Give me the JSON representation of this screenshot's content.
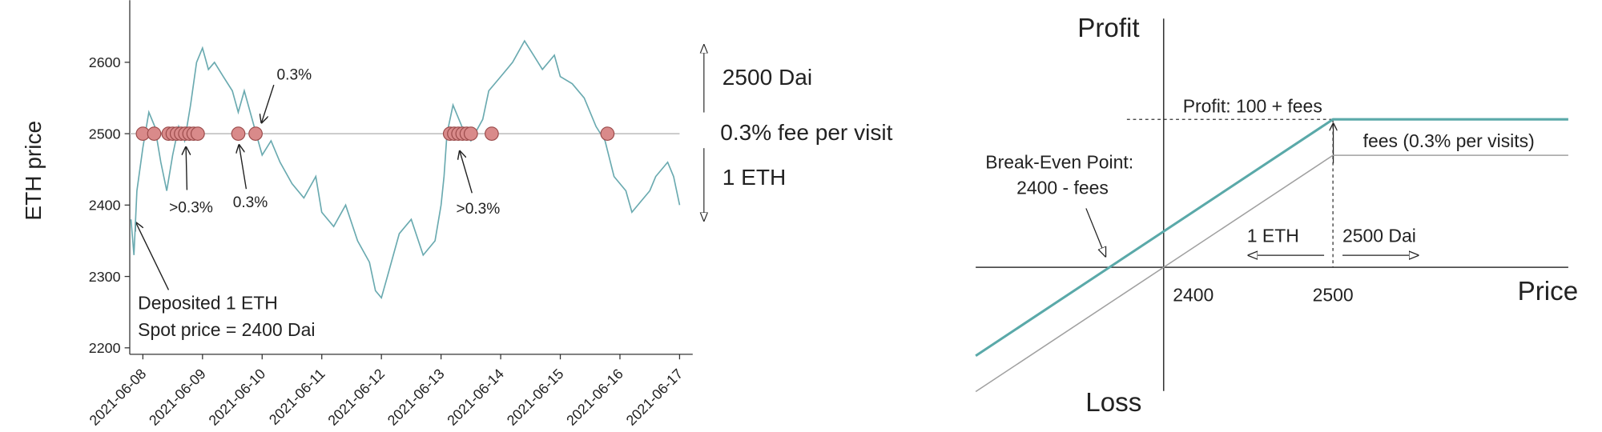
{
  "chart_data": [
    {
      "type": "line",
      "y_label": "ETH price",
      "xlim": [
        7.78,
        17.22
      ],
      "ylim": [
        2191,
        2687
      ],
      "xticks": [
        {
          "value": 8,
          "label": "2021-06-08"
        },
        {
          "value": 9,
          "label": "2021-06-09"
        },
        {
          "value": 10,
          "label": "2021-06-10"
        },
        {
          "value": 11,
          "label": "2021-06-11"
        },
        {
          "value": 12,
          "label": "2021-06-12"
        },
        {
          "value": 13,
          "label": "2021-06-13"
        },
        {
          "value": 14,
          "label": "2021-06-14"
        },
        {
          "value": 15,
          "label": "2021-06-15"
        },
        {
          "value": 16,
          "label": "2021-06-16"
        },
        {
          "value": 17,
          "label": "2021-06-17"
        }
      ],
      "yticks": [
        2200,
        2300,
        2400,
        2500,
        2600
      ],
      "reference_line": 2500,
      "series": [
        {
          "type": "line",
          "color": "#6aaab0",
          "x": [
            7.8,
            7.85,
            7.9,
            8.0,
            8.1,
            8.2,
            8.3,
            8.4,
            8.5,
            8.6,
            8.7,
            8.8,
            8.9,
            9.0,
            9.1,
            9.2,
            9.35,
            9.5,
            9.6,
            9.7,
            9.8,
            9.9,
            10.0,
            10.15,
            10.3,
            10.5,
            10.7,
            10.9,
            11.0,
            11.2,
            11.4,
            11.6,
            11.8,
            11.9,
            12.0,
            12.1,
            12.3,
            12.5,
            12.7,
            12.9,
            13.0,
            13.05,
            13.1,
            13.2,
            13.35,
            13.5,
            13.7,
            13.8,
            14.0,
            14.2,
            14.4,
            14.55,
            14.7,
            14.9,
            15.0,
            15.2,
            15.4,
            15.6,
            15.75,
            15.9,
            16.1,
            16.2,
            16.3,
            16.5,
            16.6,
            16.8,
            16.9,
            17.0
          ],
          "values": [
            2380,
            2330,
            2420,
            2480,
            2530,
            2510,
            2460,
            2420,
            2470,
            2510,
            2490,
            2540,
            2600,
            2620,
            2590,
            2600,
            2580,
            2560,
            2530,
            2560,
            2530,
            2500,
            2470,
            2490,
            2460,
            2430,
            2410,
            2440,
            2390,
            2370,
            2400,
            2350,
            2320,
            2280,
            2270,
            2300,
            2360,
            2380,
            2330,
            2350,
            2400,
            2440,
            2500,
            2540,
            2510,
            2490,
            2520,
            2560,
            2580,
            2600,
            2630,
            2610,
            2590,
            2610,
            2580,
            2570,
            2550,
            2510,
            2490,
            2440,
            2420,
            2390,
            2400,
            2420,
            2440,
            2460,
            2440,
            2400
          ]
        },
        {
          "type": "scatter",
          "color": "#d98a8a",
          "x": [
            8.0,
            8.19,
            8.43,
            8.5,
            8.57,
            8.64,
            8.71,
            8.78,
            8.85,
            8.92,
            9.6,
            9.89,
            13.15,
            13.22,
            13.29,
            13.36,
            13.43,
            13.5,
            13.85,
            15.79
          ],
          "values": [
            2500,
            2500,
            2500,
            2500,
            2500,
            2500,
            2500,
            2500,
            2500,
            2500,
            2500,
            2500,
            2500,
            2500,
            2500,
            2500,
            2500,
            2500,
            2500,
            2500
          ]
        }
      ],
      "annotations": [
        "0.3%",
        ">0.3%",
        "0.3%",
        ">0.3%",
        "Deposited 1 ETH",
        "Spot price = 2400 Dai",
        "2500 Dai",
        "0.3% fee per visit",
        "1 ETH"
      ]
    },
    {
      "type": "line",
      "x_label": "Price",
      "y_label": "Profit",
      "y_label_negative": "Loss",
      "xlim": [
        2289,
        2639
      ],
      "ylim": [
        -135,
        222
      ],
      "xticks": [
        2400,
        2500
      ],
      "series": [
        {
          "type": "line",
          "color": "#a0a0a0",
          "x": [
            2289,
            2500,
            2639
          ],
          "values": [
            -111,
            100,
            100
          ]
        },
        {
          "type": "line",
          "color": "#5aa9a9",
          "x": [
            2289,
            2500,
            2639
          ],
          "values": [
            -79,
            132,
            132
          ]
        }
      ],
      "annotations": [
        "Profit: 100 + fees",
        "fees (0.3% per visits)",
        "Break-Even Point:",
        "2400 - fees",
        "1 ETH",
        "2500 Dai"
      ]
    }
  ]
}
